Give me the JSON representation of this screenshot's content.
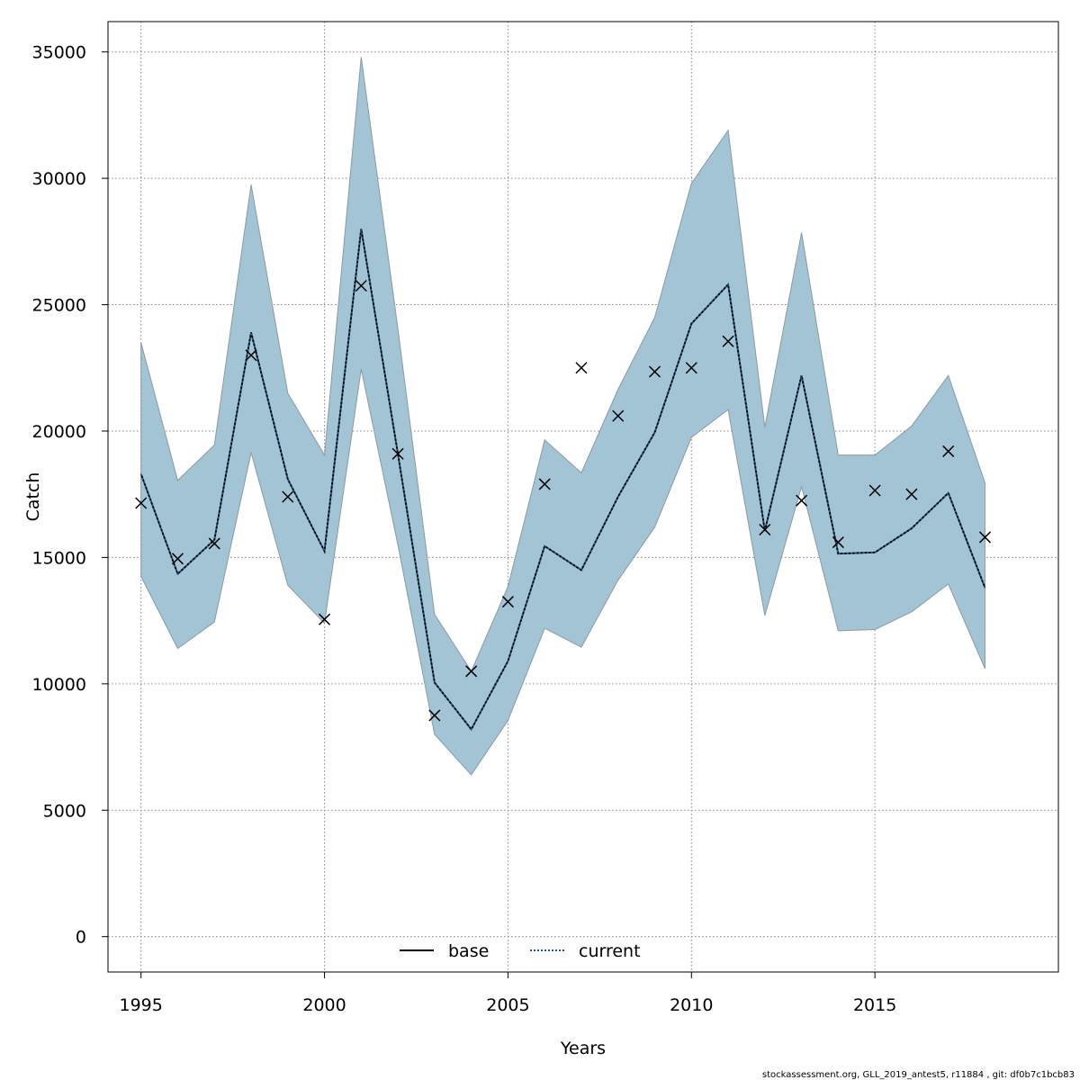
{
  "chart_data": {
    "type": "line",
    "xlabel": "Years",
    "ylabel": "Catch",
    "xlim": [
      1994.1,
      2020.0
    ],
    "ylim": [
      -1400,
      36200
    ],
    "x_ticks": [
      1995,
      2000,
      2005,
      2010,
      2015
    ],
    "y_ticks": [
      0,
      5000,
      10000,
      15000,
      20000,
      25000,
      30000,
      35000
    ],
    "x_tick_labels": [
      "1995",
      "2000",
      "2005",
      "2010",
      "2015"
    ],
    "y_tick_labels": [
      "0",
      "5000",
      "10000",
      "15000",
      "20000",
      "25000",
      "30000",
      "35000"
    ],
    "grid": true,
    "legend_position": "bottom",
    "legend": [
      {
        "label": "base",
        "style": "solid",
        "color": "#000000"
      },
      {
        "label": "current",
        "style": "dotted",
        "color": "#1a5a8a"
      }
    ],
    "x": [
      1995,
      1996,
      1997,
      1998,
      1999,
      2000,
      2001,
      2002,
      2003,
      2004,
      2005,
      2006,
      2007,
      2008,
      2009,
      2010,
      2011,
      2012,
      2013,
      2014,
      2015,
      2016,
      2017,
      2018
    ],
    "series": [
      {
        "name": "base",
        "style": "solid",
        "values": [
          18300,
          14350,
          15700,
          23900,
          18100,
          15250,
          28000,
          19100,
          10050,
          8200,
          10900,
          15450,
          14500,
          17400,
          19950,
          24250,
          25800,
          16050,
          22200,
          15150,
          15200,
          16150,
          17550,
          13800
        ]
      },
      {
        "name": "current",
        "style": "dotted",
        "values": [
          18300,
          14350,
          15700,
          23900,
          18100,
          15250,
          28000,
          19100,
          10050,
          8200,
          10900,
          15450,
          14500,
          17400,
          19950,
          24250,
          25800,
          16050,
          22200,
          15150,
          15200,
          16150,
          17550,
          13800
        ]
      }
    ],
    "ci_band": {
      "lower": [
        14250,
        11400,
        12450,
        19150,
        13900,
        12400,
        22450,
        15500,
        8000,
        6400,
        8550,
        12200,
        11450,
        14100,
        16200,
        19750,
        20850,
        12700,
        17800,
        12100,
        12150,
        12850,
        13950,
        10600
      ],
      "upper": [
        23500,
        18050,
        19450,
        29750,
        21500,
        19050,
        34800,
        24050,
        12750,
        10500,
        13850,
        19650,
        18350,
        21650,
        24500,
        29800,
        31900,
        20150,
        27850,
        19050,
        19050,
        20200,
        22200,
        17950
      ],
      "color": "#a3c4d5"
    },
    "observed": [
      17150,
      14950,
      15550,
      23000,
      17400,
      12550,
      25750,
      19100,
      8750,
      10500,
      13250,
      17900,
      22500,
      20600,
      22350,
      22500,
      23550,
      16100,
      17250,
      15600,
      17650,
      17500,
      19200,
      15800
    ]
  },
  "footer": "stockassessment.org, GLL_2019_antest5, r11884 , git: df0b7c1bcb83"
}
